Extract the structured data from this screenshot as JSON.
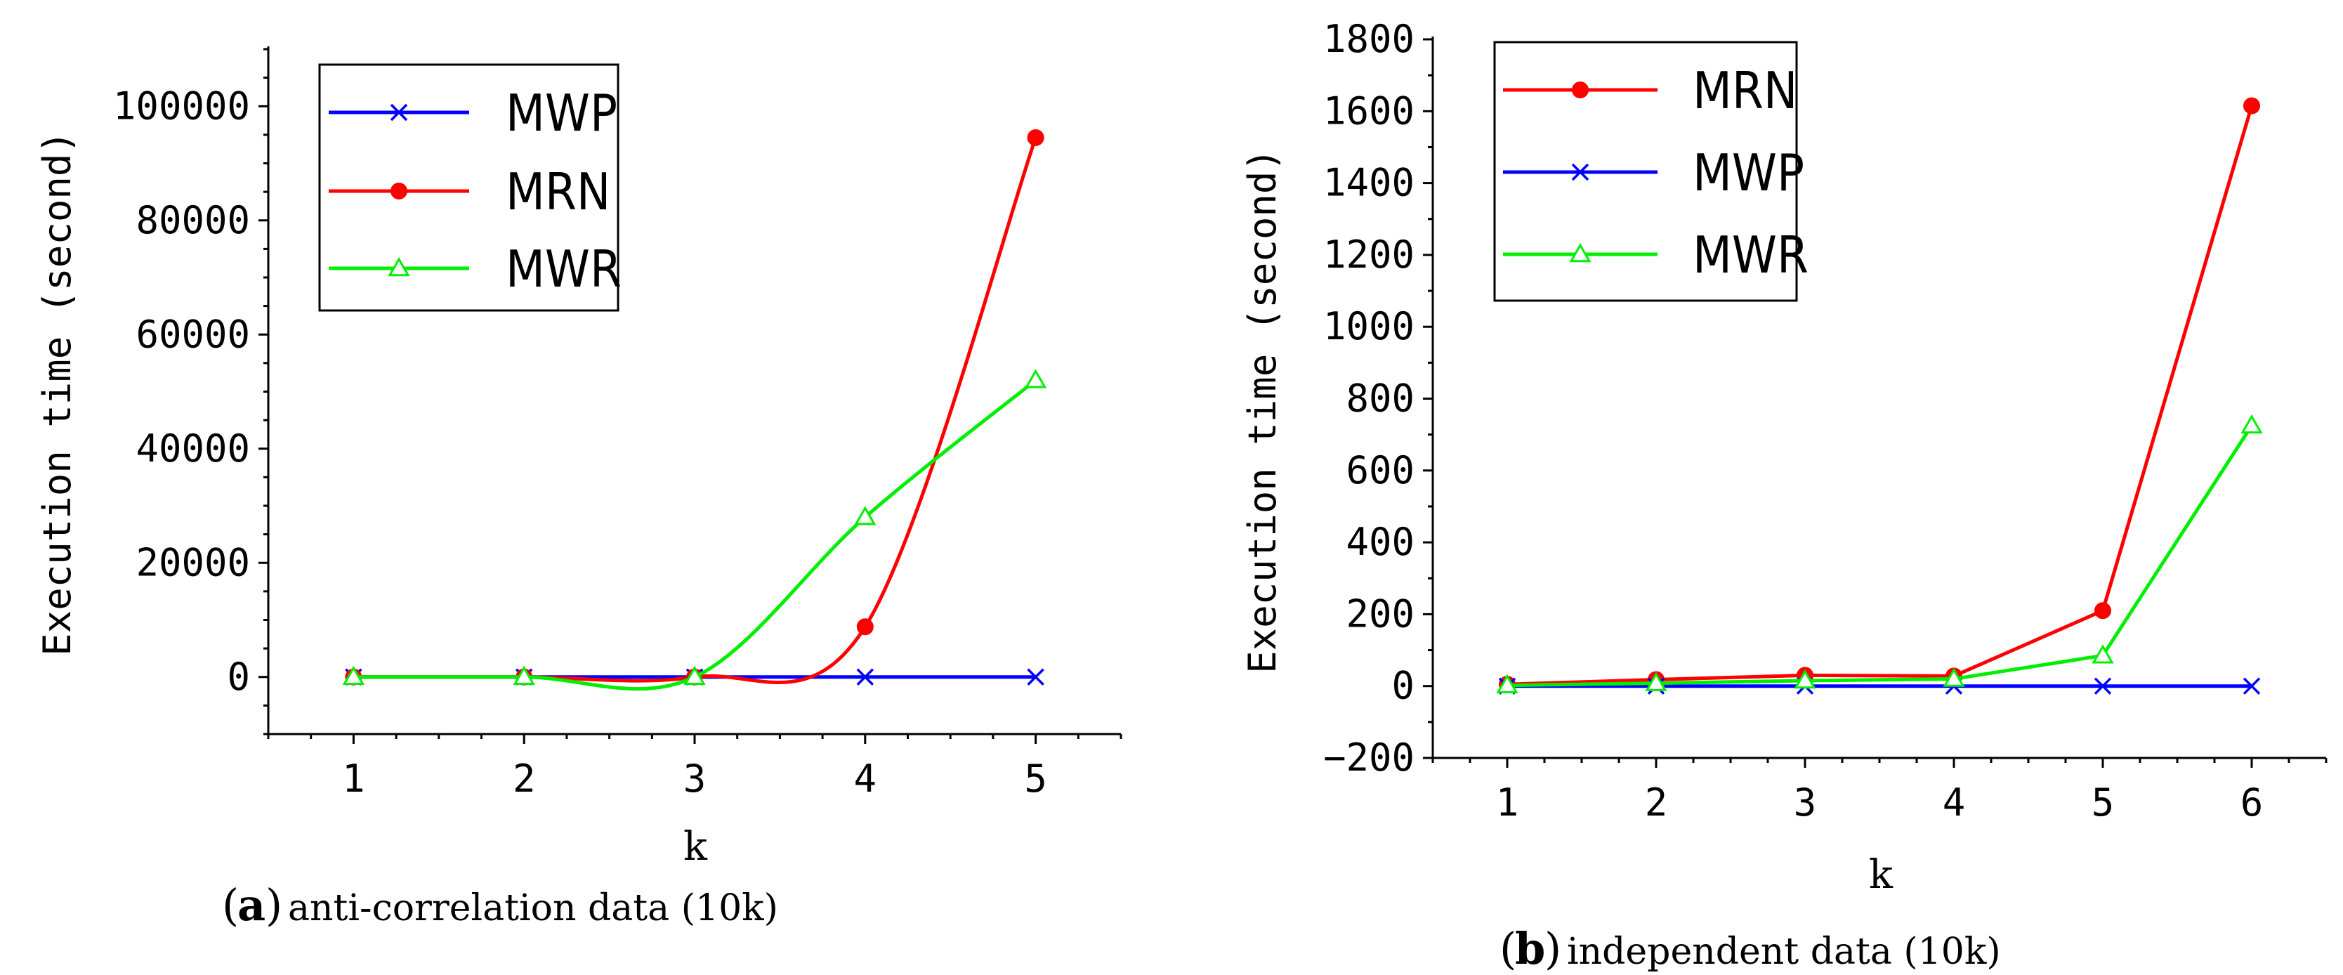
{
  "chart_data": [
    {
      "type": "line",
      "panel_letter": "a",
      "caption_text": "anti-correlation data (10k)",
      "xlabel": "k",
      "ylabel": "Execution time (second)",
      "categories": [
        1,
        2,
        3,
        4,
        5
      ],
      "xlim": [
        0.5,
        5.5
      ],
      "ylim": [
        -10000,
        110000
      ],
      "yticks": [
        0,
        20000,
        40000,
        60000,
        80000,
        100000
      ],
      "legend_position": "top-left",
      "series": [
        {
          "name": "MWP",
          "color": "#0000ff",
          "marker": "x",
          "values": [
            0,
            0,
            0,
            0,
            0
          ]
        },
        {
          "name": "MRN",
          "color": "#ff0000",
          "marker": "filled-circle",
          "values": [
            0,
            0,
            0,
            8800,
            94500
          ]
        },
        {
          "name": "MWR",
          "color": "#00ee00",
          "marker": "triangle",
          "values": [
            0,
            0,
            0,
            28000,
            52000
          ]
        }
      ]
    },
    {
      "type": "line",
      "panel_letter": "b",
      "caption_text": "independent data (10k)",
      "xlabel": "k",
      "ylabel": "Execution time (second)",
      "categories": [
        1,
        2,
        3,
        4,
        5,
        6
      ],
      "xlim": [
        0.5,
        6.5
      ],
      "ylim": [
        -200,
        1800
      ],
      "yticks": [
        -200,
        0,
        200,
        400,
        600,
        800,
        1000,
        1200,
        1400,
        1600,
        1800
      ],
      "legend_position": "top-left",
      "series": [
        {
          "name": "MRN",
          "color": "#ff0000",
          "marker": "filled-circle",
          "values": [
            5,
            18,
            30,
            28,
            210,
            1615
          ]
        },
        {
          "name": "MWP",
          "color": "#0000ff",
          "marker": "x",
          "values": [
            0,
            0,
            0,
            0,
            0,
            0
          ]
        },
        {
          "name": "MWR",
          "color": "#00ee00",
          "marker": "triangle",
          "values": [
            2,
            8,
            15,
            20,
            85,
            725
          ]
        }
      ]
    }
  ]
}
